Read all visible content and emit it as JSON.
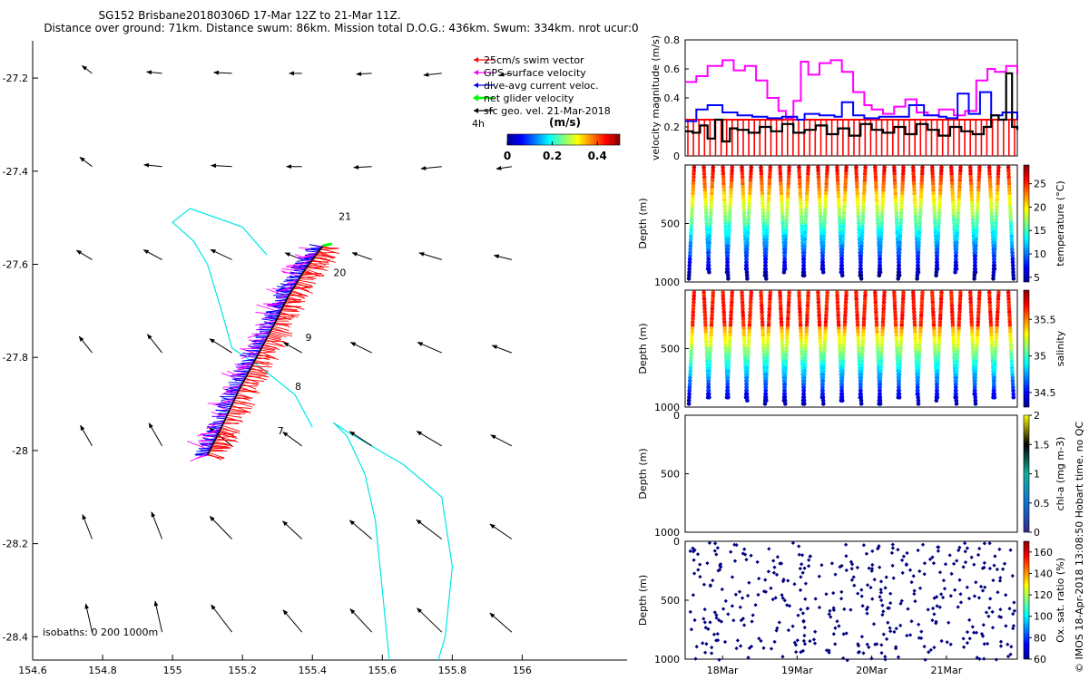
{
  "header": {
    "title": "SG152 Brisbane20180306D 17-Mar 12Z to 21-Mar 11Z.",
    "subtitle": "Distance over ground: 71km. Distance swum: 86km. Mission total D.O.G.: 436km. Swum: 334km. nrot ucur:0"
  },
  "side_note": "© IMOS 18-Apr-2018 13:08:50 Hobart time. no QC",
  "colors": {
    "swim": "#ff0000",
    "gps": "#ff00ff",
    "dive": "#0000ff",
    "net": "#00ff00",
    "sfc": "#000000",
    "isobath": "#00e6e6",
    "profile_marker": "#000080"
  },
  "chart_data": [
    {
      "type": "map",
      "name": "glider-track-map",
      "xlim": [
        154.6,
        156.3
      ],
      "ylim": [
        -28.45,
        -27.12
      ],
      "x_ticks": [
        154.6,
        154.8,
        155,
        155.2,
        155.4,
        155.6,
        155.8,
        156
      ],
      "x_tick_labels": [
        "154.6",
        "154.8",
        "155",
        "155.2",
        "155.4",
        "155.6",
        "155.8",
        "156"
      ],
      "y_ticks": [
        -27.2,
        -27.4,
        -27.6,
        -27.8,
        -28,
        -28.2,
        -28.4
      ],
      "y_tick_labels": [
        "-27.2",
        "-27.4",
        "-27.6",
        "-27.8",
        "-28",
        "-28.2",
        "-28.4"
      ],
      "legend": {
        "position": "top-right",
        "entries": [
          {
            "label": "25cm/s swim vector",
            "color": "#ff0000"
          },
          {
            "label": "GPS surface velocity",
            "color": "#ff00ff"
          },
          {
            "label": "dive-avg current veloc.",
            "color": "#0000ff"
          },
          {
            "label": "net glider velocity",
            "color": "#00ff00"
          },
          {
            "label": "sfc geo. vel. 21-Mar-2018",
            "color": "#000000"
          }
        ],
        "time_step": "4h"
      },
      "colorbar": {
        "label": "(m/s)",
        "ticks": [
          0,
          0.2,
          0.4
        ],
        "tick_labels": [
          "0",
          "0.2",
          "0.4"
        ],
        "range": [
          0,
          0.5
        ]
      },
      "isobaths_label": "isobaths: 0   200  1000m",
      "track": [
        [
          155.1,
          -28.01
        ],
        [
          155.14,
          -27.95
        ],
        [
          155.19,
          -27.87
        ],
        [
          155.24,
          -27.8
        ],
        [
          155.29,
          -27.73
        ],
        [
          155.33,
          -27.67
        ],
        [
          155.38,
          -27.61
        ],
        [
          155.43,
          -27.56
        ]
      ],
      "day_labels": [
        {
          "label": "21",
          "lon": 155.475,
          "lat": -27.505
        },
        {
          "label": "20",
          "lon": 155.46,
          "lat": -27.625
        },
        {
          "label": "9",
          "lon": 155.38,
          "lat": -27.765
        },
        {
          "label": "8",
          "lon": 155.35,
          "lat": -27.87
        },
        {
          "label": "7",
          "lon": 155.3,
          "lat": -27.965
        }
      ],
      "isobath_200": [
        [
          155.27,
          -27.58
        ],
        [
          155.2,
          -27.52
        ],
        [
          155.05,
          -27.48
        ],
        [
          155.0,
          -27.51
        ],
        [
          155.06,
          -27.55
        ],
        [
          155.1,
          -27.6
        ],
        [
          155.14,
          -27.7
        ],
        [
          155.17,
          -27.78
        ],
        [
          155.25,
          -27.82
        ],
        [
          155.35,
          -27.88
        ],
        [
          155.4,
          -27.95
        ]
      ],
      "isobath_1000": [
        [
          155.62,
          -28.45
        ],
        [
          155.6,
          -28.3
        ],
        [
          155.58,
          -28.15
        ],
        [
          155.55,
          -28.05
        ],
        [
          155.5,
          -27.97
        ],
        [
          155.46,
          -27.94
        ],
        [
          155.5,
          -27.96
        ],
        [
          155.66,
          -28.03
        ],
        [
          155.77,
          -28.1
        ],
        [
          155.8,
          -28.25
        ],
        [
          155.78,
          -28.4
        ],
        [
          155.76,
          -28.45
        ]
      ]
    },
    {
      "type": "line",
      "name": "velocity-magnitude",
      "ylabel": "velocity magnitude (m/s)",
      "ylim": [
        0,
        0.8
      ],
      "y_ticks": [
        0,
        0.2,
        0.4,
        0.6,
        0.8
      ],
      "y_tick_labels": [
        "0",
        "0.2",
        "0.4",
        "0.6",
        "0.8"
      ],
      "xlim": [
        17.5,
        21.95
      ],
      "series": [
        {
          "name": "GPS surface velocity",
          "color": "#ff00ff",
          "x": [
            17.5,
            17.65,
            17.8,
            18.0,
            18.15,
            18.3,
            18.45,
            18.6,
            18.75,
            18.85,
            18.95,
            19.05,
            19.15,
            19.3,
            19.45,
            19.6,
            19.75,
            19.9,
            20.0,
            20.15,
            20.3,
            20.45,
            20.6,
            20.75,
            20.9,
            21.1,
            21.25,
            21.4,
            21.55,
            21.65,
            21.8,
            21.95
          ],
          "values": [
            0.51,
            0.55,
            0.62,
            0.66,
            0.59,
            0.62,
            0.52,
            0.4,
            0.31,
            0.26,
            0.38,
            0.65,
            0.56,
            0.64,
            0.66,
            0.58,
            0.44,
            0.35,
            0.32,
            0.29,
            0.34,
            0.39,
            0.3,
            0.28,
            0.32,
            0.28,
            0.31,
            0.52,
            0.6,
            0.58,
            0.62,
            0.56
          ]
        },
        {
          "name": "dive-avg current veloc.",
          "color": "#0000ff",
          "x": [
            17.5,
            17.65,
            17.8,
            18.0,
            18.2,
            18.4,
            18.6,
            18.8,
            19.0,
            19.1,
            19.3,
            19.5,
            19.6,
            19.75,
            19.9,
            20.1,
            20.3,
            20.5,
            20.7,
            20.9,
            21.0,
            21.15,
            21.3,
            21.45,
            21.6,
            21.75,
            21.95
          ],
          "values": [
            0.24,
            0.32,
            0.35,
            0.3,
            0.28,
            0.27,
            0.26,
            0.27,
            0.25,
            0.29,
            0.28,
            0.27,
            0.37,
            0.28,
            0.26,
            0.27,
            0.27,
            0.35,
            0.28,
            0.27,
            0.26,
            0.43,
            0.29,
            0.44,
            0.28,
            0.3,
            0.25
          ]
        },
        {
          "name": "net glider velocity",
          "color": "#000000",
          "x": [
            17.5,
            17.6,
            17.7,
            17.8,
            17.9,
            18.0,
            18.1,
            18.2,
            18.35,
            18.5,
            18.65,
            18.8,
            18.95,
            19.1,
            19.25,
            19.4,
            19.55,
            19.7,
            19.85,
            20.0,
            20.15,
            20.3,
            20.45,
            20.6,
            20.75,
            20.9,
            21.05,
            21.2,
            21.35,
            21.5,
            21.6,
            21.7,
            21.8,
            21.88,
            21.95
          ],
          "values": [
            0.17,
            0.16,
            0.21,
            0.12,
            0.25,
            0.1,
            0.19,
            0.18,
            0.16,
            0.2,
            0.17,
            0.22,
            0.16,
            0.18,
            0.21,
            0.15,
            0.19,
            0.14,
            0.22,
            0.18,
            0.16,
            0.2,
            0.15,
            0.22,
            0.18,
            0.14,
            0.2,
            0.17,
            0.15,
            0.2,
            0.28,
            0.25,
            0.57,
            0.2,
            0.18
          ]
        },
        {
          "name": "25cm/s swim vector",
          "color": "#ff0000",
          "constant": 0.25
        }
      ]
    },
    {
      "type": "scatter",
      "name": "temperature-section",
      "ylabel": "Depth (m)",
      "ylim": [
        1000,
        0
      ],
      "y_ticks": [
        0,
        500,
        1000
      ],
      "y_tick_labels": [
        "",
        "500",
        "1000"
      ],
      "colorbar": {
        "label": "temperature (°C)",
        "range": [
          4,
          29
        ],
        "ticks": [
          5,
          10,
          15,
          20,
          25
        ],
        "tick_labels": [
          "5",
          "10",
          "15",
          "20",
          "25"
        ]
      }
    },
    {
      "type": "scatter",
      "name": "salinity-section",
      "ylabel": "Depth (m)",
      "ylim": [
        1000,
        0
      ],
      "y_ticks": [
        0,
        500,
        1000
      ],
      "y_tick_labels": [
        "",
        "500",
        "1000"
      ],
      "colorbar": {
        "label": "salinity",
        "range": [
          34.3,
          35.9
        ],
        "ticks": [
          34.5,
          35,
          35.5
        ],
        "tick_labels": [
          "34.5",
          "35",
          "35.5"
        ]
      }
    },
    {
      "type": "scatter",
      "name": "chlorophyll-section",
      "ylabel": "Depth (m)",
      "ylim": [
        1000,
        0
      ],
      "y_ticks": [
        0,
        500,
        1000
      ],
      "y_tick_labels": [
        "0",
        "500",
        "1000"
      ],
      "colorbar": {
        "label": "chl-a (mg m-3)",
        "range": [
          0,
          2
        ],
        "ticks": [
          0,
          0.5,
          1,
          1.5,
          2
        ],
        "tick_labels": [
          "0",
          "0.5",
          "1",
          "1.5",
          "2"
        ]
      }
    },
    {
      "type": "scatter",
      "name": "oxygen-section",
      "ylabel": "Depth (m)",
      "ylim": [
        1000,
        0
      ],
      "y_ticks": [
        0,
        500,
        1000
      ],
      "y_tick_labels": [
        "0",
        "500",
        "1000"
      ],
      "xlim": [
        17.5,
        21.95
      ],
      "x_ticks": [
        18,
        19,
        20,
        21
      ],
      "x_tick_labels": [
        "18Mar",
        "19Mar",
        "20Mar",
        "21Mar"
      ],
      "colorbar": {
        "label": "Ox. sat. ratio (%)",
        "range": [
          60,
          170
        ],
        "ticks": [
          60,
          80,
          100,
          120,
          140,
          160
        ],
        "tick_labels": [
          "60",
          "80",
          "100",
          "120",
          "140",
          "160"
        ]
      }
    }
  ]
}
